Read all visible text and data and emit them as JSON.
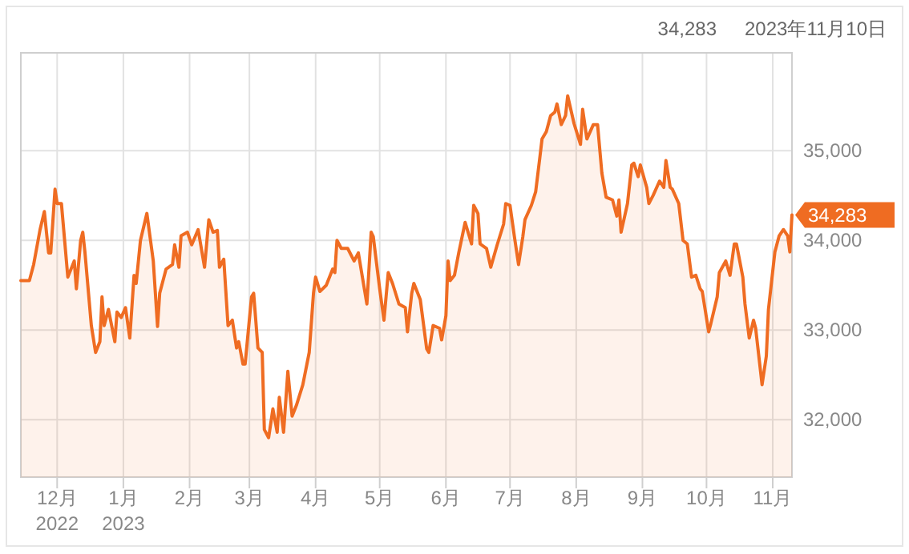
{
  "chart_data": {
    "type": "area",
    "color": "#ef6c22",
    "x": [
      "2022-11-14",
      "2022-11-18",
      "2022-11-20",
      "2022-11-23",
      "2022-11-25",
      "2022-11-27",
      "2022-11-28",
      "2022-11-30",
      "2022-12-01",
      "2022-12-03",
      "2022-12-06",
      "2022-12-09",
      "2022-12-10",
      "2022-12-12",
      "2022-12-13",
      "2022-12-14",
      "2022-12-17",
      "2022-12-19",
      "2022-12-21",
      "2022-12-22",
      "2022-12-23",
      "2022-12-25",
      "2022-12-28",
      "2022-12-29",
      "2022-12-31",
      "2023-01-02",
      "2023-01-04",
      "2023-01-06",
      "2023-01-07",
      "2023-01-09",
      "2023-01-12",
      "2023-01-15",
      "2023-01-17",
      "2023-01-18",
      "2023-01-21",
      "2023-01-24",
      "2023-01-25",
      "2023-01-27",
      "2023-01-28",
      "2023-01-31",
      "2023-02-02",
      "2023-02-05",
      "2023-02-08",
      "2023-02-10",
      "2023-02-12",
      "2023-02-14",
      "2023-02-15",
      "2023-02-17",
      "2023-02-19",
      "2023-02-21",
      "2023-02-23",
      "2023-02-24",
      "2023-02-26",
      "2023-02-27",
      "2023-03-02",
      "2023-03-03",
      "2023-03-05",
      "2023-03-07",
      "2023-03-08",
      "2023-03-10",
      "2023-03-12",
      "2023-03-14",
      "2023-03-15",
      "2023-03-17",
      "2023-03-19",
      "2023-03-21",
      "2023-03-23",
      "2023-03-26",
      "2023-03-29",
      "2023-03-31",
      "2023-04-01",
      "2023-04-03",
      "2023-04-06",
      "2023-04-09",
      "2023-04-10",
      "2023-04-11",
      "2023-04-13",
      "2023-04-16",
      "2023-04-19",
      "2023-04-21",
      "2023-04-25",
      "2023-04-27",
      "2023-04-28",
      "2023-05-01",
      "2023-05-03",
      "2023-05-05",
      "2023-05-07",
      "2023-05-10",
      "2023-05-13",
      "2023-05-14",
      "2023-05-16",
      "2023-05-17",
      "2023-05-20",
      "2023-05-23",
      "2023-05-24",
      "2023-05-26",
      "2023-05-29",
      "2023-05-30",
      "2023-06-01",
      "2023-06-02",
      "2023-06-03",
      "2023-06-05",
      "2023-06-07",
      "2023-06-10",
      "2023-06-13",
      "2023-06-14",
      "2023-06-16",
      "2023-06-17",
      "2023-06-20",
      "2023-06-22",
      "2023-06-25",
      "2023-06-28",
      "2023-06-29",
      "2023-07-01",
      "2023-07-03",
      "2023-07-05",
      "2023-07-07",
      "2023-07-08",
      "2023-07-11",
      "2023-07-13",
      "2023-07-15",
      "2023-07-16",
      "2023-07-18",
      "2023-07-20",
      "2023-07-22",
      "2023-07-23",
      "2023-07-25",
      "2023-07-27",
      "2023-07-28",
      "2023-07-31",
      "2023-08-03",
      "2023-08-04",
      "2023-08-06",
      "2023-08-09",
      "2023-08-11",
      "2023-08-13",
      "2023-08-15",
      "2023-08-18",
      "2023-08-20",
      "2023-08-21",
      "2023-08-22",
      "2023-08-25",
      "2023-08-27",
      "2023-08-28",
      "2023-08-30",
      "2023-08-31",
      "2023-09-03",
      "2023-09-04",
      "2023-09-06",
      "2023-09-09",
      "2023-09-11",
      "2023-09-12",
      "2023-09-14",
      "2023-09-15",
      "2023-09-18",
      "2023-09-20",
      "2023-09-22",
      "2023-09-24",
      "2023-09-26",
      "2023-09-28",
      "2023-09-29",
      "2023-10-02",
      "2023-10-03",
      "2023-10-06",
      "2023-10-07",
      "2023-10-10",
      "2023-10-12",
      "2023-10-14",
      "2023-10-15",
      "2023-10-18",
      "2023-10-19",
      "2023-10-21",
      "2023-10-23",
      "2023-10-24",
      "2023-10-27",
      "2023-10-29",
      "2023-10-30",
      "2023-11-02",
      "2023-11-04",
      "2023-11-06",
      "2023-11-08",
      "2023-11-09",
      "2023-11-10"
    ],
    "values": [
      33550,
      33550,
      33730,
      34120,
      34320,
      33860,
      33860,
      34570,
      34410,
      34410,
      33590,
      33770,
      33460,
      34000,
      34090,
      33870,
      33050,
      32750,
      32870,
      33370,
      33050,
      33230,
      32870,
      33200,
      33140,
      33250,
      32910,
      33610,
      33520,
      34000,
      34300,
      33770,
      33040,
      33410,
      33680,
      33730,
      33950,
      33700,
      34050,
      34090,
      33950,
      34120,
      33700,
      34230,
      34090,
      34110,
      33700,
      33790,
      33050,
      33110,
      32800,
      32870,
      32620,
      32620,
      33370,
      33410,
      32800,
      32750,
      31890,
      31800,
      32120,
      31860,
      32250,
      31860,
      32540,
      32040,
      32160,
      32390,
      32750,
      33410,
      33590,
      33430,
      33500,
      33680,
      33640,
      34000,
      33910,
      33910,
      33770,
      33860,
      33290,
      34090,
      34040,
      33460,
      33110,
      33640,
      33520,
      33290,
      33250,
      32980,
      33410,
      33520,
      33340,
      32790,
      32750,
      33050,
      33020,
      32890,
      33160,
      33770,
      33550,
      33610,
      33860,
      34200,
      33960,
      34390,
      34300,
      33960,
      33910,
      33700,
      33950,
      34180,
      34410,
      34390,
      34050,
      33730,
      34040,
      34230,
      34390,
      34540,
      34930,
      35130,
      35210,
      35390,
      35430,
      35520,
      35290,
      35390,
      35610,
      35300,
      35070,
      35460,
      35130,
      35290,
      35290,
      34750,
      34480,
      34450,
      34270,
      34450,
      34090,
      34410,
      34840,
      34860,
      34710,
      34840,
      34590,
      34410,
      34500,
      34660,
      34590,
      34890,
      34590,
      34570,
      34410,
      34000,
      33960,
      33590,
      33610,
      33460,
      33430,
      32980,
      33070,
      33370,
      33640,
      33770,
      33610,
      33960,
      33960,
      33590,
      33290,
      32910,
      33110,
      33020,
      32390,
      32710,
      33230,
      33870,
      34050,
      34120,
      34050,
      33870,
      34283
    ],
    "xlim": [
      "2022-11-14",
      "2023-11-10"
    ],
    "xticks": [
      {
        "value": "2022-12-01",
        "label": "12月\n2022"
      },
      {
        "value": "2023-01-01",
        "label": "1月\n2023"
      },
      {
        "value": "2023-02-01",
        "label": "2月"
      },
      {
        "value": "2023-03-01",
        "label": "3月"
      },
      {
        "value": "2023-04-01",
        "label": "4月"
      },
      {
        "value": "2023-05-01",
        "label": "5月"
      },
      {
        "value": "2023-06-01",
        "label": "6月"
      },
      {
        "value": "2023-07-01",
        "label": "7月"
      },
      {
        "value": "2023-08-01",
        "label": "8月"
      },
      {
        "value": "2023-09-01",
        "label": "9月"
      },
      {
        "value": "2023-10-01",
        "label": "10月"
      },
      {
        "value": "2023-11-01",
        "label": "11月"
      }
    ],
    "ylim": [
      31360,
      36090
    ],
    "yticks": [
      {
        "value": 32000,
        "label": "32,000"
      },
      {
        "value": 33000,
        "label": "33,000"
      },
      {
        "value": 34000,
        "label": "34,000"
      },
      {
        "value": 35000,
        "label": "35,000"
      }
    ],
    "grid": true,
    "annotations": [
      "34,283",
      "2023年11月10日",
      {
        "text": "34,283",
        "x": "2023-11-10",
        "y": 34283
      }
    ]
  }
}
